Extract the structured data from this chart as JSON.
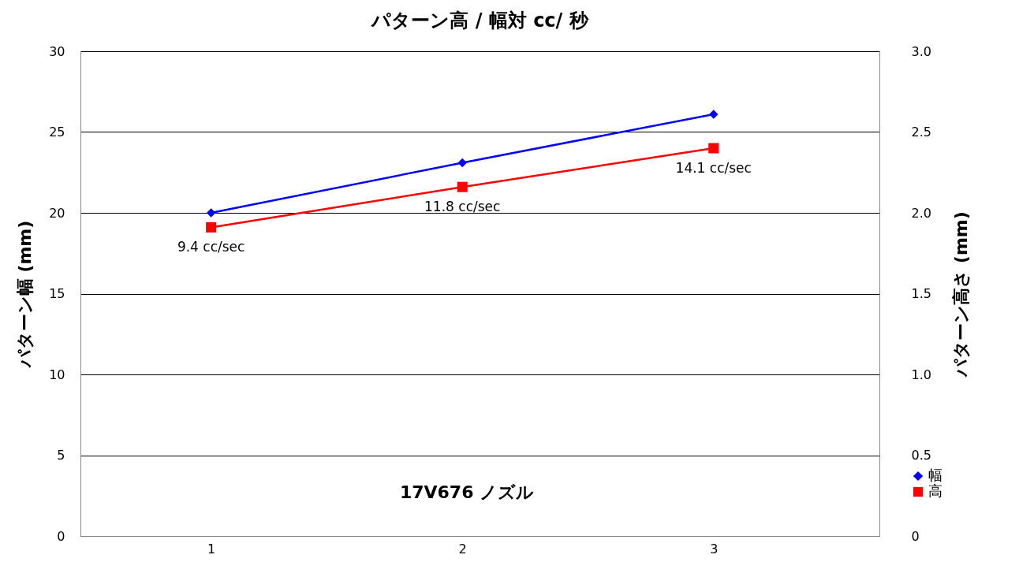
{
  "chart_data": {
    "type": "line",
    "title": "パターン高 / 幅対 cc/ 秒",
    "x": [
      1,
      2,
      3
    ],
    "xlim": [
      0.48,
      3.66
    ],
    "xticks": [
      1,
      2,
      3
    ],
    "ylabel": "パターン幅 (mm)",
    "y2label": "パターン高さ (mm)",
    "ylim": [
      0,
      30
    ],
    "yticks": [
      0,
      5,
      10,
      15,
      20,
      25,
      30
    ],
    "y2lim": [
      0,
      3
    ],
    "y2ticks": [
      0,
      0.5,
      {
        "value": 1,
        "label": "1.0"
      },
      1.5,
      {
        "value": 2,
        "label": "2.0"
      },
      2.5,
      {
        "value": 3,
        "label": "3.0"
      }
    ],
    "series": [
      {
        "name": "幅",
        "color": "#0000ff",
        "values": [
          20.0,
          23.1,
          26.1
        ],
        "marker": "diamond"
      },
      {
        "name": "高",
        "color": "#ff0000",
        "values": [
          1.91,
          2.16,
          2.4
        ],
        "marker": "square",
        "axis": "y2"
      }
    ],
    "annotations": [
      "9.4 cc/sec",
      "11.8 cc/sec",
      "14.1 cc/sec",
      "17V676 ノズル"
    ],
    "grid": "y",
    "legend": "bottom right",
    "line_style": "solid"
  }
}
